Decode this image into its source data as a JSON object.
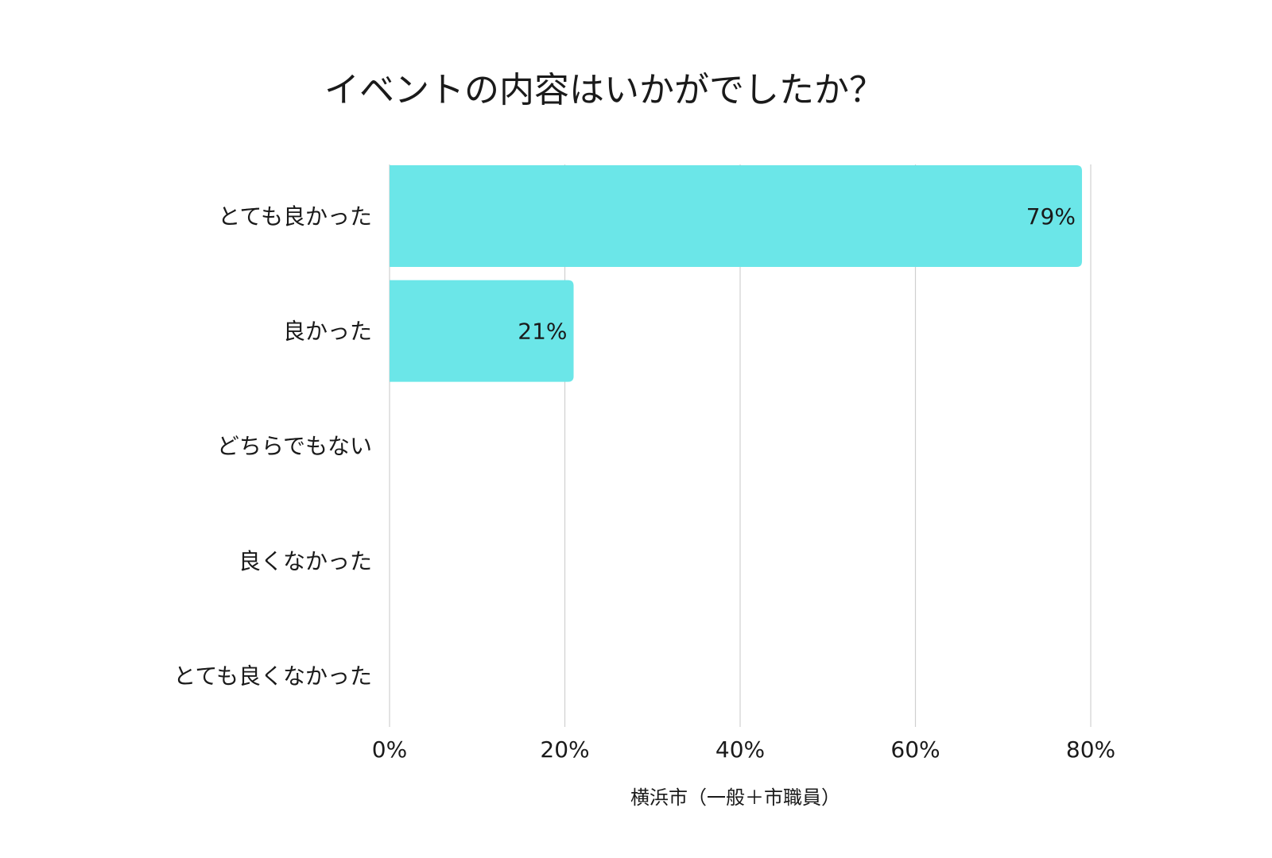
{
  "chart_data": {
    "type": "bar",
    "orientation": "horizontal",
    "title": "イベントの内容はいかがでしたか？",
    "xlabel": "横浜市（一般＋市職員）",
    "ylabel": "",
    "categories": [
      "とても良かった",
      "良かった",
      "どちらでもない",
      "良くなかった",
      "とても良くなかった"
    ],
    "series": [
      {
        "values": [
          79,
          21,
          0,
          0,
          0
        ],
        "value_labels": [
          "79%",
          "21%",
          "",
          "",
          ""
        ]
      }
    ],
    "xlim": [
      0,
      80
    ],
    "x_ticks": [
      0,
      20,
      40,
      60,
      80
    ],
    "x_tick_labels": [
      "0%",
      "20%",
      "40%",
      "60%",
      "80%"
    ],
    "grid": true,
    "legend": "none",
    "colors": {
      "bar": "#6be6e8",
      "grid": "#d0d0d0",
      "text": "#1a1a1a"
    }
  }
}
